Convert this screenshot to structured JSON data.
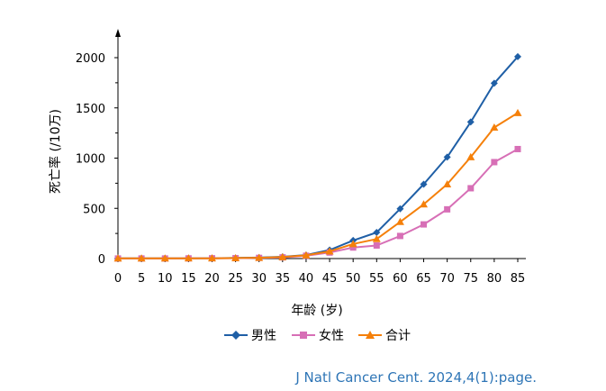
{
  "chart_data": {
    "type": "line",
    "title": "",
    "xlabel": "年龄 (岁)",
    "ylabel": "死亡率 (/10万)",
    "x": [
      0,
      5,
      10,
      15,
      20,
      25,
      30,
      35,
      40,
      45,
      50,
      55,
      60,
      65,
      70,
      75,
      80,
      85
    ],
    "xlim": [
      0,
      85
    ],
    "ylim": [
      0,
      2000
    ],
    "yticks": [
      0,
      500,
      1000,
      1500,
      2000
    ],
    "grid": false,
    "legend_position": "bottom",
    "series": [
      {
        "name": "男性",
        "color": "#1f5fa6",
        "marker": "diamond",
        "values": [
          2,
          2,
          2,
          3,
          4,
          6,
          10,
          18,
          35,
          85,
          180,
          260,
          495,
          740,
          1010,
          1360,
          1745,
          2010
        ]
      },
      {
        "name": "女性",
        "color": "#d76fb6",
        "marker": "square",
        "values": [
          1,
          1,
          1,
          2,
          3,
          4,
          7,
          12,
          28,
          60,
          110,
          130,
          225,
          340,
          490,
          700,
          960,
          1090
        ]
      },
      {
        "name": "合计",
        "color": "#f5800a",
        "marker": "triangle",
        "values": [
          2,
          2,
          2,
          3,
          3,
          5,
          8,
          15,
          32,
          72,
          145,
          195,
          365,
          540,
          740,
          1010,
          1305,
          1450
        ]
      }
    ]
  },
  "citation": "J Natl Cancer Cent. 2024,4(1):page."
}
